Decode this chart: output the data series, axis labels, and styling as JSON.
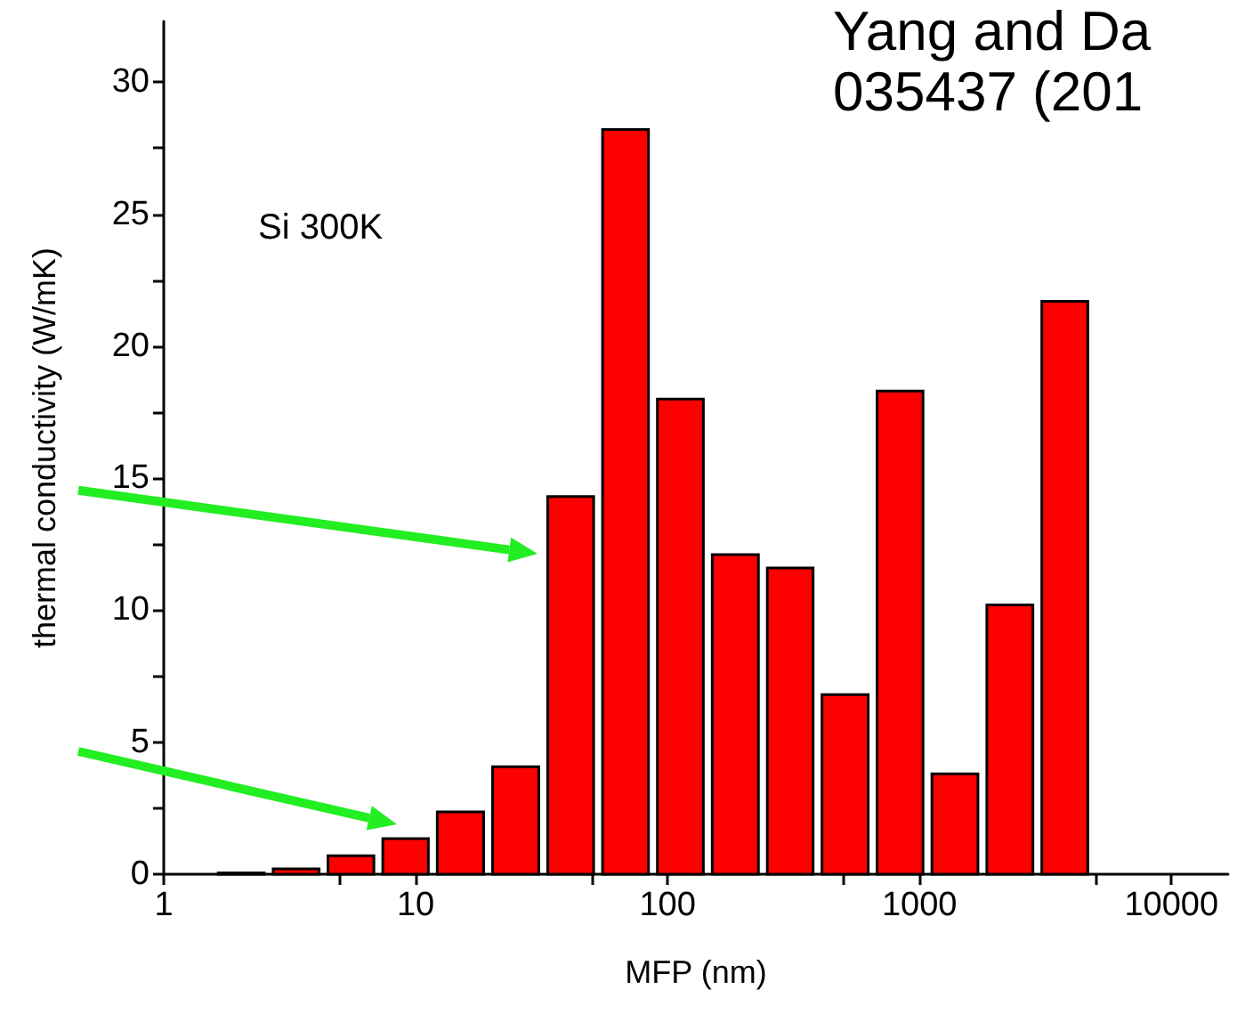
{
  "chart_data": {
    "type": "histogram",
    "xlabel": "MFP (nm)",
    "ylabel": "thermal conductivity (W/mK)",
    "annotations": [
      "Si 300K",
      "Yang and Da",
      "035437 (201"
    ],
    "bins": [
      1.58,
      2.61,
      4.31,
      7.11,
      11.7,
      19.4,
      32.1,
      53.0,
      87.5,
      144.5,
      239,
      394,
      652,
      1076,
      1778,
      2938,
      4853
    ],
    "values": [
      0.05,
      0.2,
      0.7,
      1.35,
      2.36,
      4.07,
      14.3,
      28.2,
      18.0,
      12.1,
      11.6,
      6.8,
      18.3,
      3.8,
      10.2,
      21.7
    ],
    "color": "#ff0000",
    "log": "x",
    "xlim": [
      1,
      16800
    ],
    "xticks": [
      1,
      {
        "value": 5,
        "label": null
      },
      10,
      {
        "value": 50,
        "label": null
      },
      100,
      {
        "value": 500,
        "label": null
      },
      1000,
      {
        "value": 5000,
        "label": null
      },
      10000
    ],
    "ylim": [
      0,
      32.3
    ],
    "yticks": [
      0,
      {
        "value": 2.5,
        "label": null
      },
      5,
      {
        "value": 7.5,
        "label": null
      },
      10,
      {
        "value": 12.5,
        "label": null
      },
      15,
      {
        "value": 17.5,
        "label": null
      },
      20,
      {
        "value": 22.5,
        "label": null
      },
      25,
      {
        "value": 27.5,
        "label": null
      },
      30
    ],
    "grid": false
  }
}
